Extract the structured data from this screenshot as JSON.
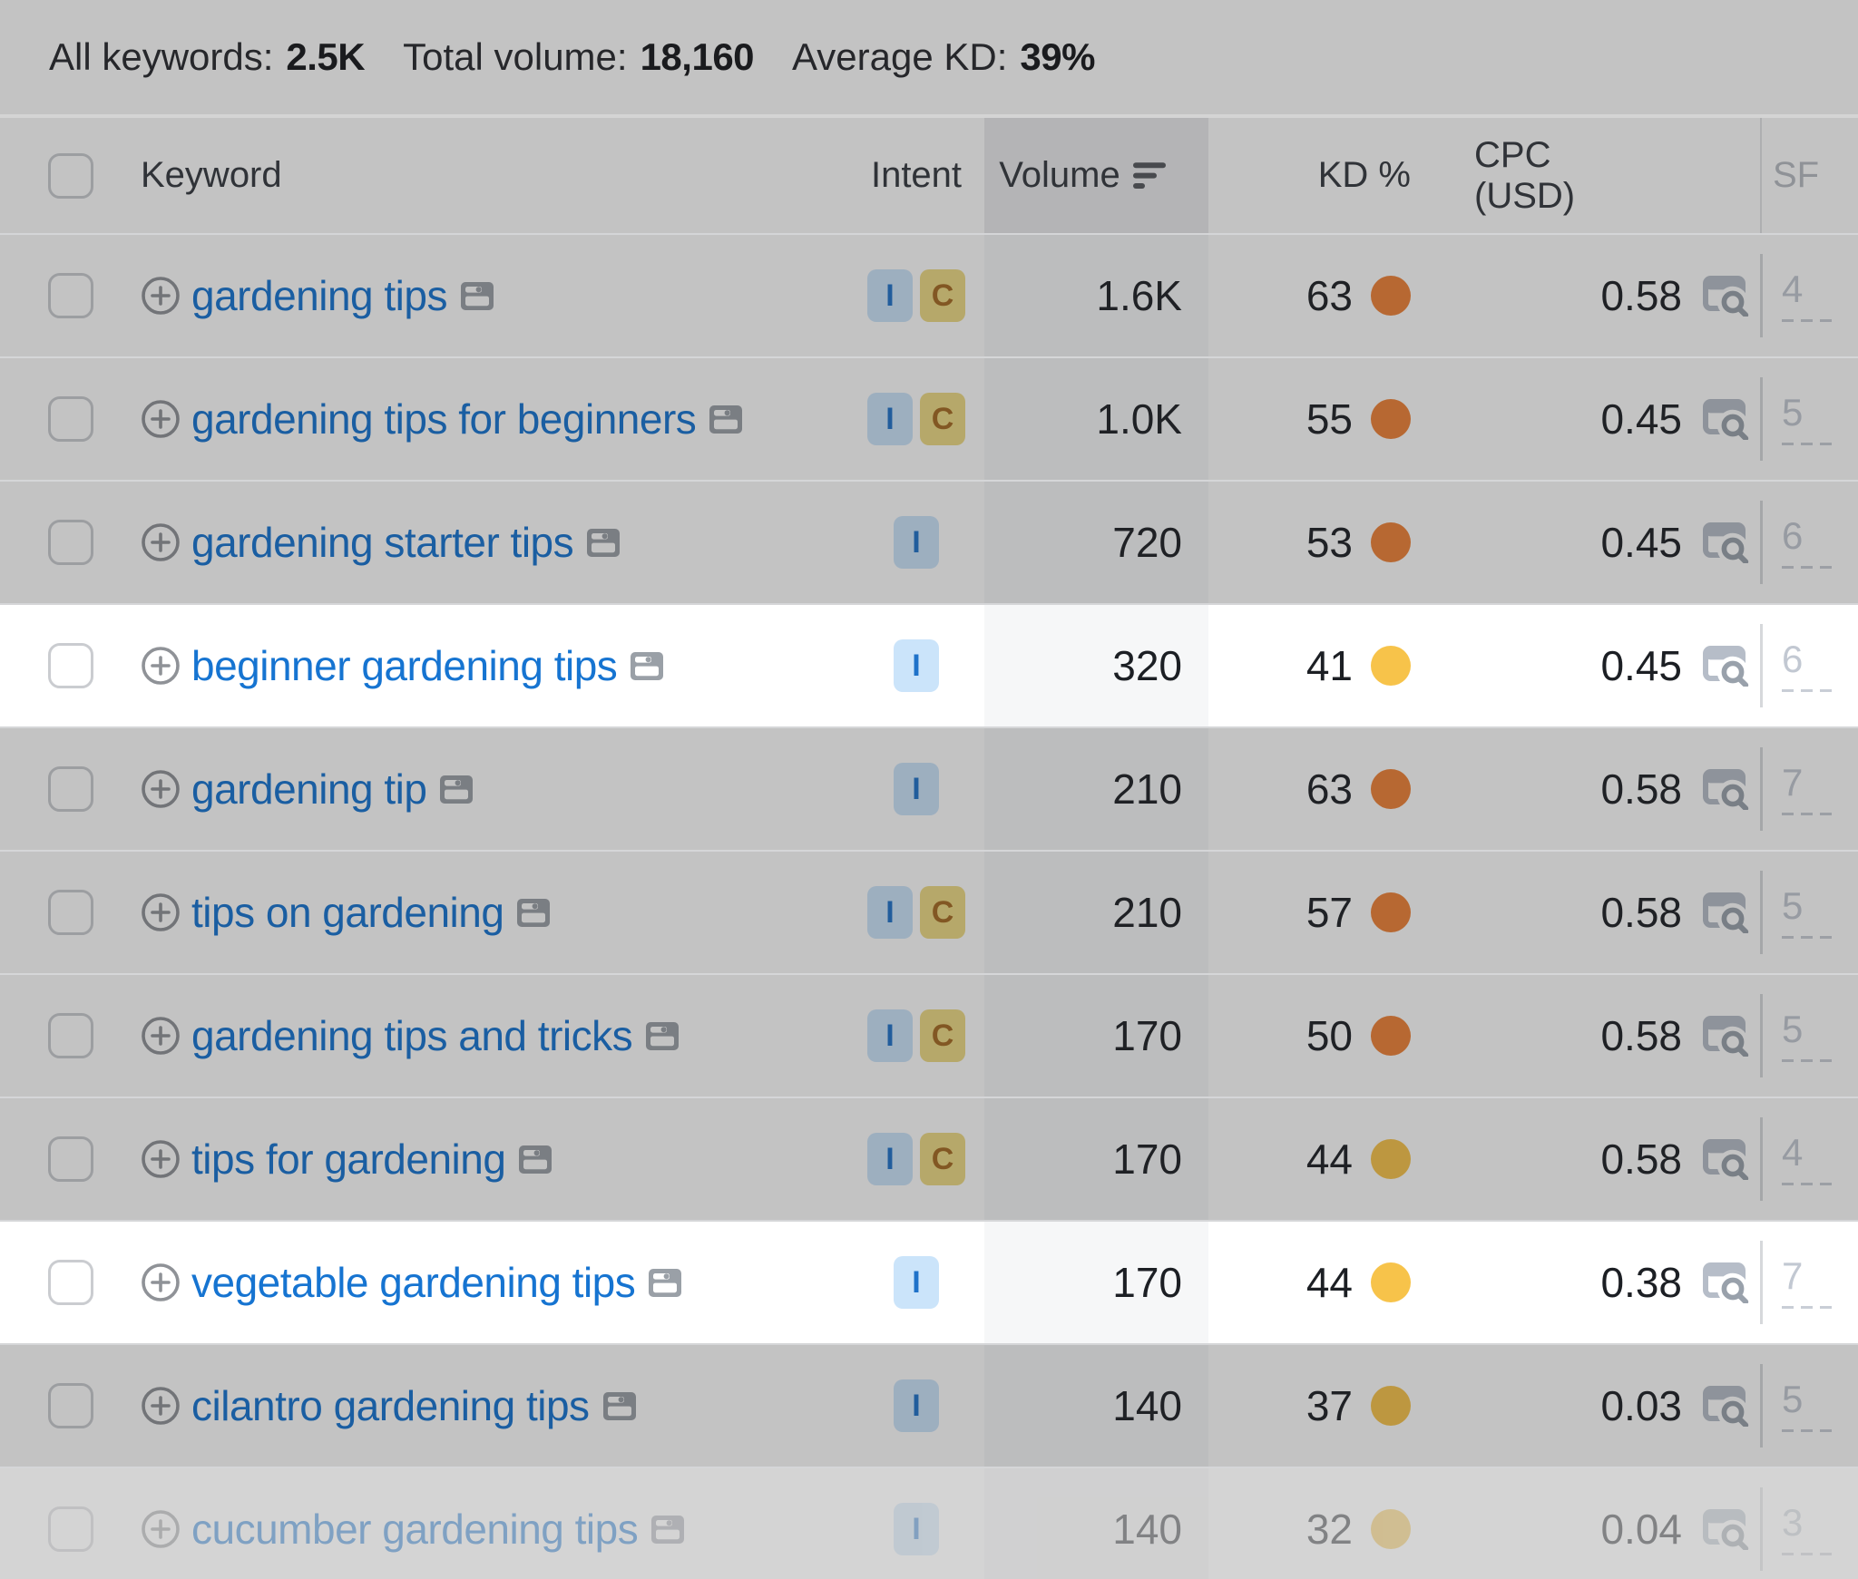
{
  "summary": {
    "items": [
      {
        "label": "All keywords:",
        "value": "2.5K"
      },
      {
        "label": "Total volume:",
        "value": "18,160"
      },
      {
        "label": "Average KD:",
        "value": "39%"
      }
    ]
  },
  "table": {
    "columns": {
      "keyword": "Keyword",
      "intent": "Intent",
      "volume": "Volume",
      "kd": "KD %",
      "cpc": "CPC (USD)",
      "sf": "SF"
    },
    "sort": {
      "column": "volume",
      "direction": "desc"
    },
    "intent_labels": {
      "I": "informational",
      "C": "commercial"
    },
    "colors": {
      "link_blue": "#1674d1",
      "kd_orange": "#ef8136",
      "kd_yellow": "#f7c34a",
      "intent_informational_bg": "#cbe4fa",
      "intent_informational_text": "#1f72c9",
      "intent_commercial_bg": "#eeda84",
      "intent_commercial_text": "#a56a22",
      "highlight_row_bg": "#ffffff"
    },
    "rows": [
      {
        "keyword": "gardening tips",
        "intents": [
          "I",
          "C"
        ],
        "volume": "1.6K",
        "kd": "63",
        "kd_color": "orange",
        "cpc": "0.58",
        "sf": "4",
        "state": "dimmed"
      },
      {
        "keyword": "gardening tips for beginners",
        "intents": [
          "I",
          "C"
        ],
        "volume": "1.0K",
        "kd": "55",
        "kd_color": "orange",
        "cpc": "0.45",
        "sf": "5",
        "state": "dimmed"
      },
      {
        "keyword": "gardening starter tips",
        "intents": [
          "I"
        ],
        "volume": "720",
        "kd": "53",
        "kd_color": "orange",
        "cpc": "0.45",
        "sf": "6",
        "state": "dimmed"
      },
      {
        "keyword": "beginner gardening tips",
        "intents": [
          "I"
        ],
        "volume": "320",
        "kd": "41",
        "kd_color": "yellow",
        "cpc": "0.45",
        "sf": "6",
        "state": "highlighted"
      },
      {
        "keyword": "gardening tip",
        "intents": [
          "I"
        ],
        "volume": "210",
        "kd": "63",
        "kd_color": "orange",
        "cpc": "0.58",
        "sf": "7",
        "state": "dimmed"
      },
      {
        "keyword": "tips on gardening",
        "intents": [
          "I",
          "C"
        ],
        "volume": "210",
        "kd": "57",
        "kd_color": "orange",
        "cpc": "0.58",
        "sf": "5",
        "state": "dimmed"
      },
      {
        "keyword": "gardening tips and tricks",
        "intents": [
          "I",
          "C"
        ],
        "volume": "170",
        "kd": "50",
        "kd_color": "orange",
        "cpc": "0.58",
        "sf": "5",
        "state": "dimmed"
      },
      {
        "keyword": "tips for gardening",
        "intents": [
          "I",
          "C"
        ],
        "volume": "170",
        "kd": "44",
        "kd_color": "yellow",
        "cpc": "0.58",
        "sf": "4",
        "state": "dimmed"
      },
      {
        "keyword": "vegetable gardening tips",
        "intents": [
          "I"
        ],
        "volume": "170",
        "kd": "44",
        "kd_color": "yellow",
        "cpc": "0.38",
        "sf": "7",
        "state": "highlighted"
      },
      {
        "keyword": "cilantro gardening tips",
        "intents": [
          "I"
        ],
        "volume": "140",
        "kd": "37",
        "kd_color": "yellow",
        "cpc": "0.03",
        "sf": "5",
        "state": "dimmed"
      },
      {
        "keyword": "cucumber gardening tips",
        "intents": [
          "I"
        ],
        "volume": "140",
        "kd": "32",
        "kd_color": "yellow",
        "cpc": "0.04",
        "sf": "3",
        "state": "faded"
      }
    ]
  }
}
